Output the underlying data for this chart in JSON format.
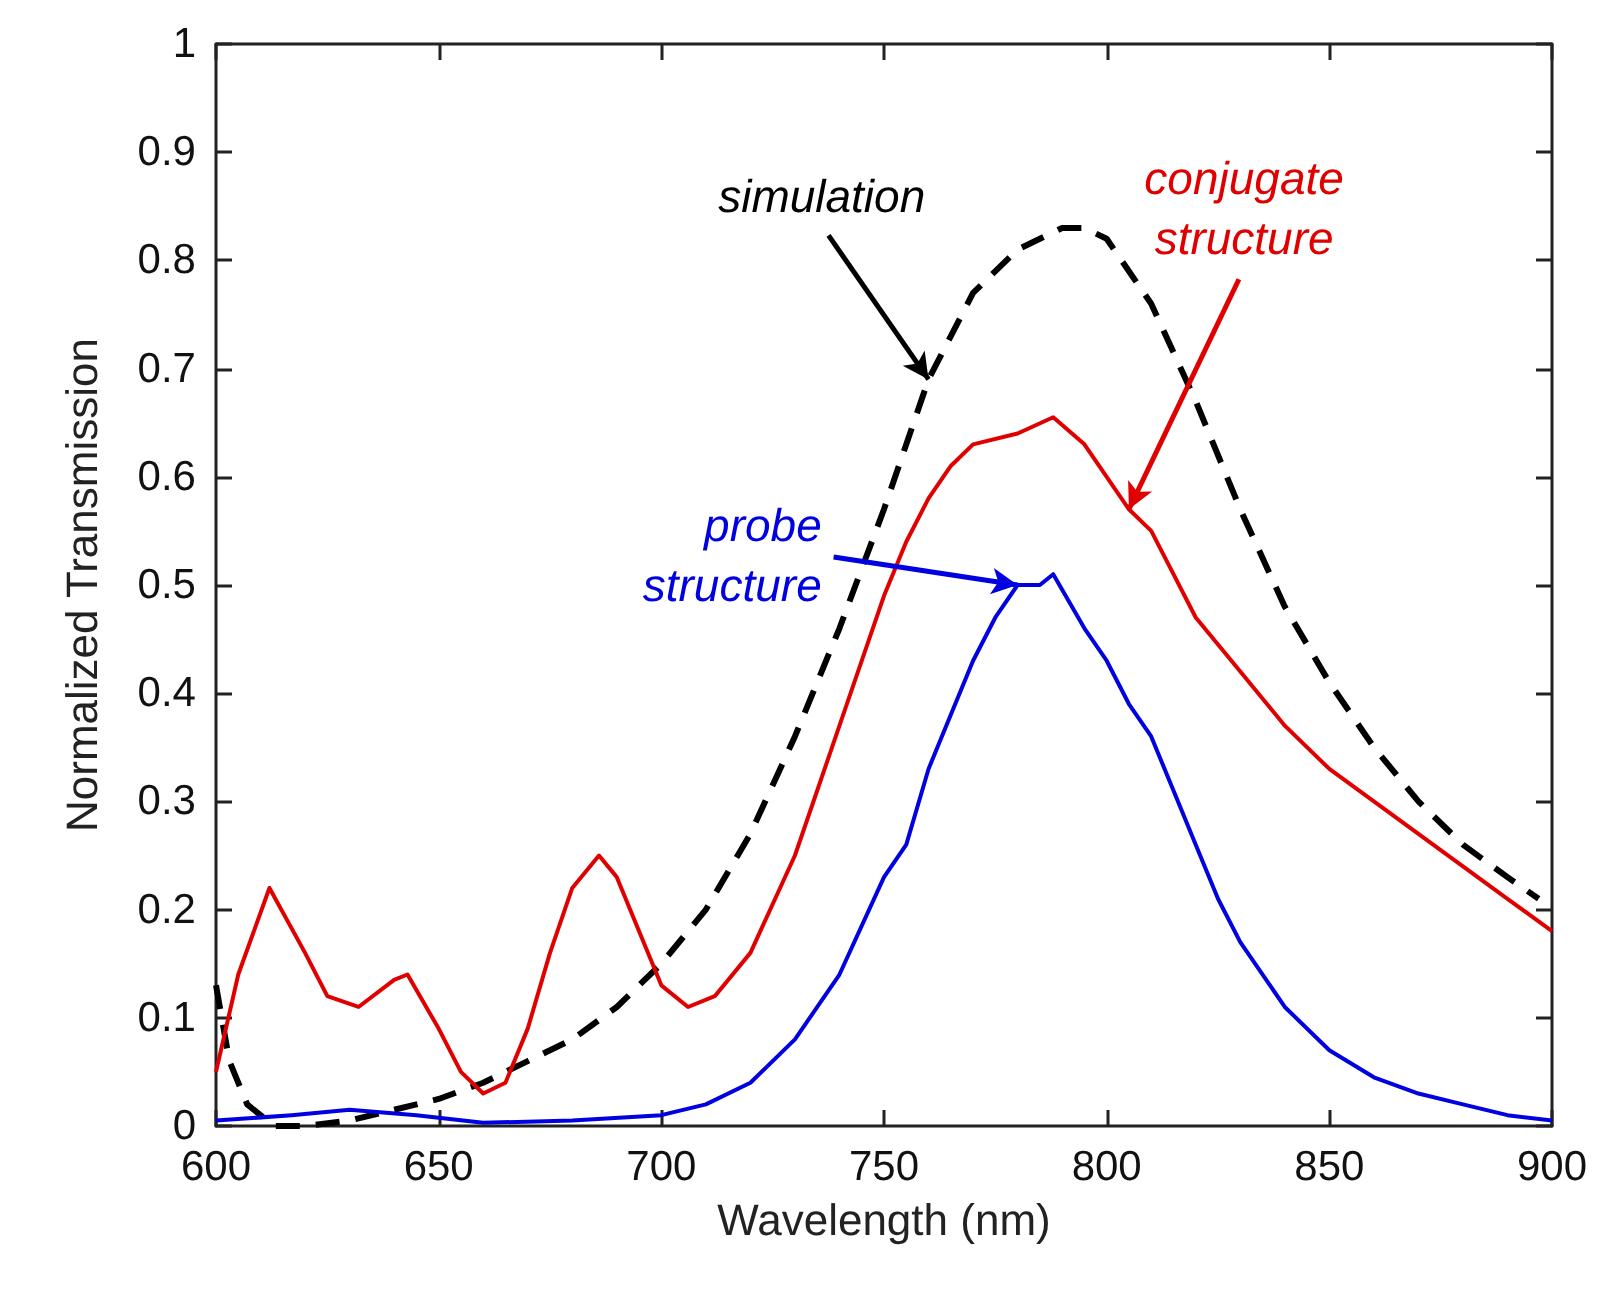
{
  "chart_data": {
    "type": "line",
    "xlabel": "Wavelength (nm)",
    "ylabel": "Normalized Transmission",
    "xlim": [
      600,
      900
    ],
    "xticks": [
      600,
      650,
      700,
      750,
      800,
      850,
      900
    ],
    "ylim": [
      0,
      1
    ],
    "yticks": [
      0,
      0.1,
      0.2,
      0.3,
      0.4,
      0.5,
      0.6,
      0.7,
      0.8,
      0.9,
      1
    ],
    "grid": false,
    "marker": "none",
    "series": [
      {
        "color": "#000000",
        "line_style": "dashed",
        "x": [
          600,
          603,
          607,
          613,
          620,
          630,
          640,
          650,
          660,
          670,
          680,
          690,
          700,
          710,
          720,
          730,
          740,
          750,
          760,
          770,
          780,
          790,
          795,
          800,
          810,
          820,
          830,
          840,
          850,
          860,
          870,
          880,
          890,
          897
        ],
        "values": [
          0.13,
          0.06,
          0.02,
          0.0,
          0.0,
          0.005,
          0.015,
          0.025,
          0.04,
          0.06,
          0.08,
          0.11,
          0.15,
          0.2,
          0.27,
          0.36,
          0.46,
          0.57,
          0.69,
          0.77,
          0.81,
          0.83,
          0.83,
          0.82,
          0.76,
          0.67,
          0.57,
          0.48,
          0.41,
          0.35,
          0.3,
          0.26,
          0.23,
          0.21
        ]
      },
      {
        "color": "#e00000",
        "line_style": "solid",
        "x": [
          600,
          605,
          612,
          620,
          625,
          632,
          640,
          643,
          650,
          655,
          660,
          665,
          670,
          675,
          680,
          686,
          690,
          695,
          700,
          706,
          712,
          720,
          730,
          740,
          750,
          755,
          760,
          765,
          770,
          780,
          788,
          795,
          800,
          805,
          810,
          815,
          820,
          830,
          840,
          850,
          860,
          870,
          880,
          890,
          900
        ],
        "values": [
          0.05,
          0.14,
          0.22,
          0.16,
          0.12,
          0.11,
          0.135,
          0.14,
          0.09,
          0.05,
          0.03,
          0.04,
          0.09,
          0.16,
          0.22,
          0.25,
          0.23,
          0.18,
          0.13,
          0.11,
          0.12,
          0.16,
          0.25,
          0.37,
          0.49,
          0.54,
          0.58,
          0.61,
          0.63,
          0.64,
          0.655,
          0.63,
          0.6,
          0.57,
          0.55,
          0.51,
          0.47,
          0.42,
          0.37,
          0.33,
          0.3,
          0.27,
          0.24,
          0.21,
          0.18
        ]
      },
      {
        "color": "#0000e0",
        "line_style": "solid",
        "x": [
          600,
          617,
          630,
          645,
          660,
          680,
          700,
          710,
          720,
          730,
          740,
          750,
          755,
          760,
          765,
          770,
          775,
          780,
          785,
          788,
          795,
          800,
          805,
          810,
          815,
          820,
          825,
          830,
          840,
          850,
          860,
          870,
          880,
          890,
          900
        ],
        "values": [
          0.005,
          0.01,
          0.015,
          0.01,
          0.003,
          0.005,
          0.01,
          0.02,
          0.04,
          0.08,
          0.14,
          0.23,
          0.26,
          0.33,
          0.38,
          0.43,
          0.47,
          0.5,
          0.5,
          0.51,
          0.46,
          0.43,
          0.39,
          0.36,
          0.31,
          0.26,
          0.21,
          0.17,
          0.11,
          0.07,
          0.045,
          0.03,
          0.02,
          0.01,
          0.005
        ]
      }
    ],
    "annotations": [
      {
        "text": "simulation",
        "x": 760,
        "y": 0.69
      },
      {
        "text": "conjugate structure",
        "x": 805,
        "y": 0.57
      },
      {
        "text": "probe structure",
        "x": 780,
        "y": 0.5
      }
    ]
  }
}
